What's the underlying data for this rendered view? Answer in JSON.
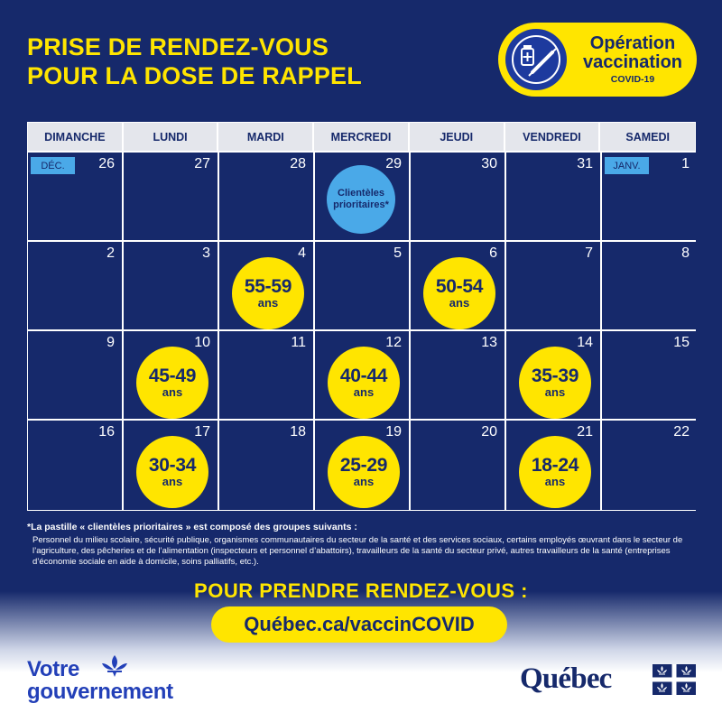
{
  "header": {
    "title_line1": "PRISE DE RENDEZ-VOUS",
    "title_line2": "POUR LA DOSE DE RAPPEL"
  },
  "badge": {
    "line1": "Opération",
    "line2": "vaccination",
    "line3": "COVID-19",
    "icon": "syringe-vial-icon"
  },
  "calendar": {
    "weekdays": [
      "DIMANCHE",
      "LUNDI",
      "MARDI",
      "MERCREDI",
      "JEUDI",
      "VENDREDI",
      "SAMEDI"
    ],
    "weeks": [
      [
        {
          "day": "26",
          "month_tag": "DÉC."
        },
        {
          "day": "27"
        },
        {
          "day": "28"
        },
        {
          "day": "29",
          "priority": "Clientèles prioritaires*"
        },
        {
          "day": "30"
        },
        {
          "day": "31"
        },
        {
          "day": "1",
          "month_tag": "JANV."
        }
      ],
      [
        {
          "day": "2"
        },
        {
          "day": "3"
        },
        {
          "day": "4",
          "range": "55-59",
          "unit": "ans"
        },
        {
          "day": "5"
        },
        {
          "day": "6",
          "range": "50-54",
          "unit": "ans"
        },
        {
          "day": "7"
        },
        {
          "day": "8"
        }
      ],
      [
        {
          "day": "9"
        },
        {
          "day": "10",
          "range": "45-49",
          "unit": "ans"
        },
        {
          "day": "11"
        },
        {
          "day": "12",
          "range": "40-44",
          "unit": "ans"
        },
        {
          "day": "13"
        },
        {
          "day": "14",
          "range": "35-39",
          "unit": "ans"
        },
        {
          "day": "15"
        }
      ],
      [
        {
          "day": "16"
        },
        {
          "day": "17",
          "range": "30-34",
          "unit": "ans"
        },
        {
          "day": "18"
        },
        {
          "day": "19",
          "range": "25-29",
          "unit": "ans"
        },
        {
          "day": "20"
        },
        {
          "day": "21",
          "range": "18-24",
          "unit": "ans"
        },
        {
          "day": "22"
        }
      ]
    ]
  },
  "footnote": {
    "title": "*La pastille « clientèles prioritaires » est composé des groupes suivants :",
    "body": "Personnel du milieu scolaire, sécurité publique, organismes communautaires du secteur de la santé et des services sociaux, certains employés œuvrant dans le secteur de l’agriculture, des pêcheries et de l’alimentation (inspecteurs et personnel d’abattoirs), travailleurs de la santé du secteur privé, autres travailleurs de la santé (entreprises d’économie sociale en aide à domicile, soins palliatifs, etc.)."
  },
  "cta": {
    "heading": "POUR PRENDRE RENDEZ-VOUS :",
    "url": "Québec.ca/vaccinCOVID"
  },
  "footer": {
    "gov_line1": "Votre",
    "gov_line2": "gouvernement",
    "quebec_logo": "Québec",
    "fleur_icon": "fleur-de-lis-icon",
    "flag_icon": "quebec-flag-icon"
  },
  "colors": {
    "navy": "#16296b",
    "yellow": "#ffe500",
    "light_blue": "#4aa9e8",
    "header_gray": "#e4e6ec",
    "gov_blue": "#2340b8"
  }
}
